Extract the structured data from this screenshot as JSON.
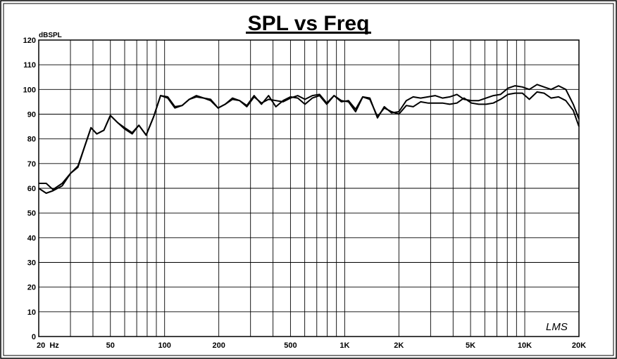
{
  "chart_data": {
    "type": "line",
    "title": "SPL vs Freq",
    "ylabel": "dBSPL",
    "xlabel": "",
    "x_scale": "log",
    "xlim": [
      20,
      20000
    ],
    "ylim": [
      0,
      120
    ],
    "grid": true,
    "y_ticks": [
      "0",
      "10",
      "20",
      "30",
      "40",
      "50",
      "60",
      "70",
      "80",
      "90",
      "100",
      "110",
      "120"
    ],
    "x_ticks": [
      {
        "value": 20,
        "label": "20  Hz"
      },
      {
        "value": 50,
        "label": "50"
      },
      {
        "value": 100,
        "label": "100"
      },
      {
        "value": 200,
        "label": "200"
      },
      {
        "value": 500,
        "label": "500"
      },
      {
        "value": 1000,
        "label": "1K"
      },
      {
        "value": 2000,
        "label": "2K"
      },
      {
        "value": 5000,
        "label": "5K"
      },
      {
        "value": 10000,
        "label": "10K"
      },
      {
        "value": 20000,
        "label": "20K"
      }
    ],
    "watermark": "LMS",
    "series": [
      {
        "x": [
          20,
          22,
          24,
          27,
          30,
          33,
          36,
          39,
          42,
          46,
          50,
          55,
          60,
          66,
          72,
          79,
          87,
          95,
          104,
          114,
          125,
          137,
          150,
          165,
          180,
          198,
          217,
          238,
          261,
          286,
          314,
          345,
          378,
          415,
          455,
          500,
          549,
          602,
          661,
          725,
          795,
          873,
          958,
          1050,
          1150,
          1260,
          1380,
          1520,
          1660,
          1820,
          2000,
          2200,
          2400,
          2640,
          2900,
          3180,
          3490,
          3830,
          4200,
          4600,
          5060,
          5550,
          6100,
          6690,
          7340,
          8060,
          8840,
          9700,
          10600,
          11700,
          12800,
          14000,
          15400,
          16900,
          18600,
          20000
        ],
        "values": [
          62.0,
          62.0,
          59.5,
          62.0,
          66.0,
          69.0,
          77.0,
          84.5,
          82.0,
          83.5,
          89.5,
          86.5,
          84.5,
          82.5,
          85.5,
          81.5,
          89.0,
          97.5,
          97.0,
          93.0,
          93.5,
          96.0,
          97.0,
          96.5,
          96.0,
          92.5,
          94.0,
          96.5,
          95.5,
          93.0,
          97.0,
          94.5,
          96.0,
          95.5,
          95.0,
          96.5,
          97.5,
          96.0,
          97.5,
          98.0,
          94.5,
          97.5,
          95.0,
          95.5,
          92.0,
          97.0,
          96.5,
          88.5,
          93.0,
          90.5,
          91.0,
          95.5,
          97.0,
          96.5,
          97.0,
          97.5,
          96.5,
          97.0,
          98.0,
          96.0,
          95.5,
          95.5,
          96.5,
          97.5,
          98.0,
          100.5,
          101.5,
          101.0,
          100.0,
          102.0,
          101.0,
          100.0,
          101.5,
          100.0,
          94.0,
          88.0
        ]
      },
      {
        "x": [
          20,
          22,
          24,
          27,
          30,
          33,
          36,
          39,
          42,
          46,
          50,
          55,
          60,
          66,
          72,
          79,
          87,
          95,
          104,
          114,
          125,
          137,
          150,
          165,
          180,
          198,
          217,
          238,
          261,
          286,
          314,
          345,
          378,
          415,
          455,
          500,
          549,
          602,
          661,
          725,
          795,
          873,
          958,
          1050,
          1150,
          1260,
          1380,
          1520,
          1660,
          1820,
          2000,
          2200,
          2400,
          2640,
          2900,
          3180,
          3490,
          3830,
          4200,
          4600,
          5060,
          5550,
          6100,
          6690,
          7340,
          8060,
          8840,
          9700,
          10600,
          11700,
          12800,
          14000,
          15400,
          16900,
          18600,
          20000
        ],
        "values": [
          60.0,
          58.0,
          59.0,
          61.0,
          66.0,
          68.5,
          77.0,
          84.5,
          82.0,
          83.5,
          89.5,
          86.5,
          84.0,
          82.0,
          85.5,
          81.5,
          89.0,
          97.5,
          96.5,
          92.5,
          93.5,
          96.0,
          97.5,
          96.5,
          95.5,
          92.5,
          94.0,
          96.0,
          95.5,
          93.5,
          97.5,
          94.0,
          97.5,
          93.0,
          95.5,
          97.0,
          96.5,
          94.0,
          96.5,
          97.5,
          94.0,
          97.5,
          95.5,
          95.0,
          91.0,
          97.0,
          96.0,
          89.0,
          92.5,
          91.0,
          90.0,
          93.5,
          93.0,
          95.0,
          94.5,
          94.5,
          94.5,
          94.0,
          94.5,
          96.5,
          94.5,
          94.0,
          94.0,
          94.5,
          96.0,
          98.0,
          98.5,
          98.5,
          96.0,
          99.0,
          98.5,
          96.5,
          97.0,
          95.5,
          91.5,
          85.0
        ]
      }
    ]
  }
}
